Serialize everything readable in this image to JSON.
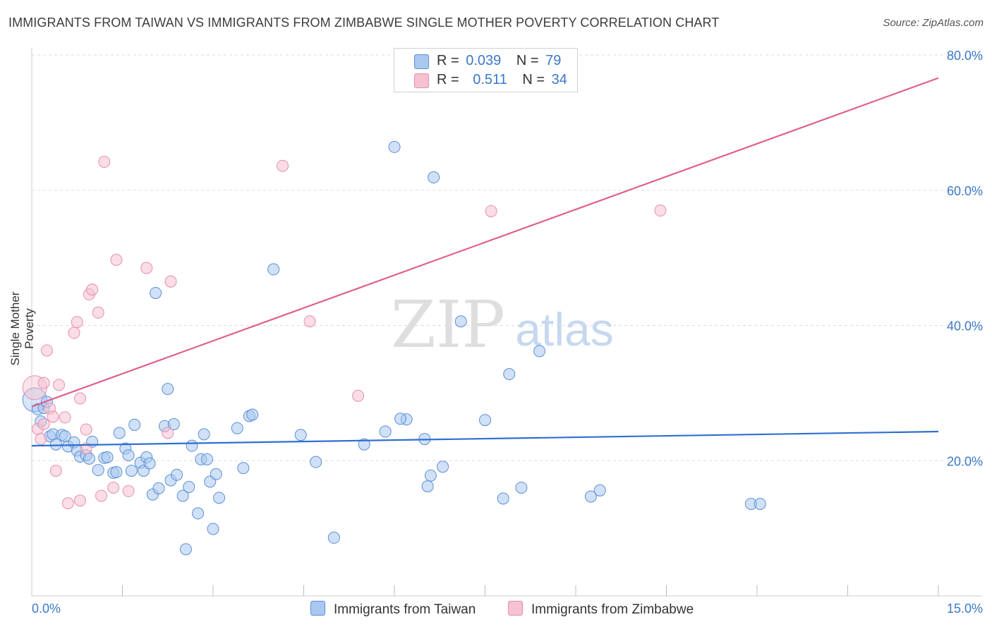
{
  "title": "IMMIGRANTS FROM TAIWAN VS IMMIGRANTS FROM ZIMBABWE SINGLE MOTHER POVERTY CORRELATION CHART",
  "source": "Source: ZipAtlas.com",
  "watermark": {
    "zip": "ZIP",
    "atlas": "atlas"
  },
  "legend": {
    "taiwan": {
      "r_label": "R =",
      "r_value": "0.039",
      "n_label": "N =",
      "n_value": "79"
    },
    "zimbabwe": {
      "r_label": "R =",
      "r_value": "0.511",
      "n_label": "N =",
      "n_value": "34"
    }
  },
  "bottom_legend": {
    "taiwan": "Immigrants from Taiwan",
    "zimbabwe": "Immigrants from Zimbabwe"
  },
  "colors": {
    "taiwan_fill": "#a9c8f0",
    "taiwan_stroke": "#5a8fd6",
    "taiwan_line": "#2f6fd1",
    "zimbabwe_fill": "#f6c1d1",
    "zimbabwe_stroke": "#e590ab",
    "zimbabwe_line": "#e0608d",
    "axis_text": "#3a78c9",
    "grid": "#dddddd"
  },
  "chart_data": {
    "type": "scatter",
    "title": "IMMIGRANTS FROM TAIWAN VS IMMIGRANTS FROM ZIMBABWE SINGLE MOTHER POVERTY CORRELATION CHART",
    "xlabel": "",
    "ylabel": "Single Mother Poverty",
    "xlim": [
      0,
      15
    ],
    "ylim": [
      0,
      80
    ],
    "x_tick_labels": [
      {
        "value": 0,
        "label": "0.0%"
      },
      {
        "value": 15,
        "label": "15.0%"
      }
    ],
    "y_tick_labels": [
      {
        "value": 20,
        "label": "20.0%"
      },
      {
        "value": 40,
        "label": "40.0%"
      },
      {
        "value": 60,
        "label": "60.0%"
      },
      {
        "value": 80,
        "label": "80.0%"
      }
    ],
    "x_minor_ticks": [
      1.5,
      3.0,
      4.5,
      6.0,
      7.5,
      9.0,
      10.5,
      12.0,
      13.5,
      15.0
    ],
    "series": [
      {
        "name": "Immigrants from Taiwan",
        "r": 0.039,
        "n": 79,
        "trend": {
          "x": [
            0,
            15
          ],
          "y": [
            22.2,
            24.3
          ]
        },
        "points": [
          [
            0.05,
            29.0
          ],
          [
            0.1,
            27.6
          ],
          [
            0.15,
            25.8
          ],
          [
            0.2,
            27.8
          ],
          [
            0.25,
            28.7
          ],
          [
            0.3,
            23.6
          ],
          [
            0.35,
            23.9
          ],
          [
            0.4,
            22.4
          ],
          [
            0.5,
            23.8
          ],
          [
            0.55,
            23.6
          ],
          [
            0.6,
            22.1
          ],
          [
            0.7,
            22.7
          ],
          [
            0.75,
            21.5
          ],
          [
            0.8,
            20.6
          ],
          [
            0.9,
            20.8
          ],
          [
            0.95,
            20.3
          ],
          [
            1.0,
            22.8
          ],
          [
            1.1,
            18.6
          ],
          [
            1.2,
            20.4
          ],
          [
            1.25,
            20.5
          ],
          [
            1.35,
            18.2
          ],
          [
            1.4,
            18.3
          ],
          [
            1.45,
            24.1
          ],
          [
            1.55,
            21.8
          ],
          [
            1.6,
            20.8
          ],
          [
            1.65,
            18.5
          ],
          [
            1.7,
            25.3
          ],
          [
            1.8,
            19.7
          ],
          [
            1.85,
            18.5
          ],
          [
            1.9,
            20.5
          ],
          [
            1.95,
            19.6
          ],
          [
            2.0,
            15.0
          ],
          [
            2.05,
            44.8
          ],
          [
            2.1,
            15.9
          ],
          [
            2.2,
            25.1
          ],
          [
            2.25,
            30.6
          ],
          [
            2.3,
            17.1
          ],
          [
            2.35,
            25.4
          ],
          [
            2.4,
            17.9
          ],
          [
            2.5,
            14.8
          ],
          [
            2.55,
            6.9
          ],
          [
            2.6,
            16.1
          ],
          [
            2.65,
            22.2
          ],
          [
            2.75,
            12.2
          ],
          [
            2.8,
            20.2
          ],
          [
            2.85,
            23.9
          ],
          [
            2.9,
            20.2
          ],
          [
            2.95,
            16.9
          ],
          [
            3.0,
            9.9
          ],
          [
            3.05,
            18.0
          ],
          [
            3.1,
            14.5
          ],
          [
            3.4,
            24.8
          ],
          [
            3.5,
            18.9
          ],
          [
            3.6,
            26.6
          ],
          [
            3.65,
            26.8
          ],
          [
            4.0,
            48.3
          ],
          [
            4.45,
            23.8
          ],
          [
            4.7,
            19.8
          ],
          [
            5.0,
            8.6
          ],
          [
            5.5,
            22.4
          ],
          [
            5.85,
            24.3
          ],
          [
            6.0,
            66.4
          ],
          [
            6.2,
            26.1
          ],
          [
            6.5,
            23.2
          ],
          [
            6.55,
            16.2
          ],
          [
            6.6,
            17.8
          ],
          [
            6.65,
            61.9
          ],
          [
            6.8,
            19.1
          ],
          [
            7.1,
            40.6
          ],
          [
            7.5,
            26.0
          ],
          [
            7.8,
            14.4
          ],
          [
            7.9,
            32.8
          ],
          [
            8.1,
            16.0
          ],
          [
            8.4,
            36.2
          ],
          [
            9.25,
            14.7
          ],
          [
            9.4,
            15.6
          ],
          [
            11.9,
            13.6
          ],
          [
            12.05,
            13.6
          ],
          [
            6.1,
            26.2
          ]
        ]
      },
      {
        "name": "Immigrants from Zimbabwe",
        "r": 0.511,
        "n": 34,
        "trend": {
          "x": [
            0,
            15
          ],
          "y": [
            28.0,
            76.6
          ]
        },
        "points": [
          [
            0.05,
            30.8
          ],
          [
            0.1,
            24.7
          ],
          [
            0.15,
            23.2
          ],
          [
            0.2,
            25.4
          ],
          [
            0.25,
            36.3
          ],
          [
            0.3,
            27.7
          ],
          [
            0.35,
            26.5
          ],
          [
            0.4,
            18.5
          ],
          [
            0.45,
            31.2
          ],
          [
            0.55,
            26.4
          ],
          [
            0.6,
            13.7
          ],
          [
            0.7,
            38.9
          ],
          [
            0.75,
            40.5
          ],
          [
            0.8,
            14.1
          ],
          [
            0.8,
            29.2
          ],
          [
            0.9,
            21.8
          ],
          [
            0.9,
            24.6
          ],
          [
            0.95,
            44.6
          ],
          [
            1.0,
            45.3
          ],
          [
            1.1,
            41.9
          ],
          [
            1.15,
            14.8
          ],
          [
            1.2,
            64.2
          ],
          [
            1.35,
            16.0
          ],
          [
            1.4,
            49.7
          ],
          [
            1.6,
            15.5
          ],
          [
            1.9,
            48.5
          ],
          [
            2.25,
            24.1
          ],
          [
            2.3,
            46.5
          ],
          [
            4.15,
            63.6
          ],
          [
            4.6,
            40.6
          ],
          [
            5.4,
            29.6
          ],
          [
            7.6,
            56.9
          ],
          [
            10.4,
            57.0
          ],
          [
            0.2,
            31.5
          ]
        ]
      }
    ]
  }
}
